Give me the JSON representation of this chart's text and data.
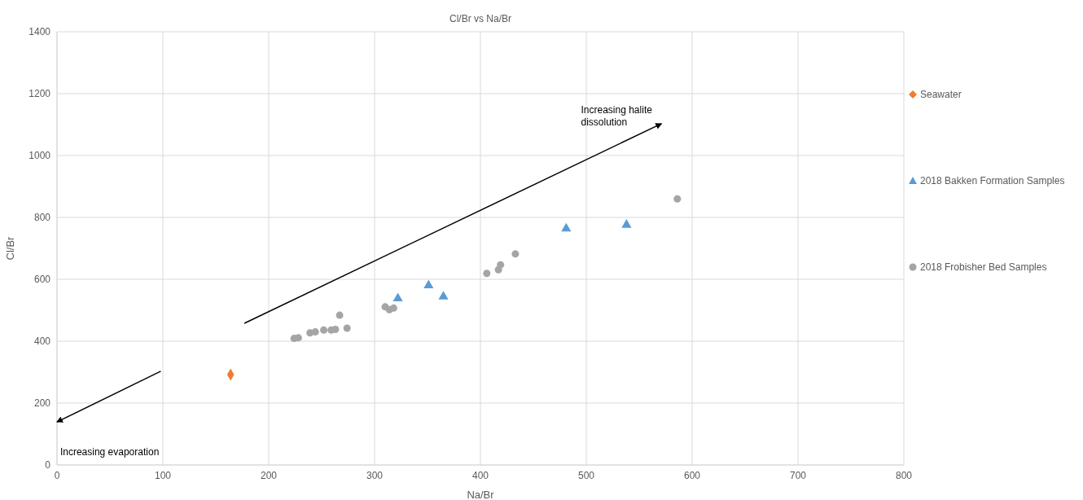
{
  "chart_data": {
    "type": "scatter",
    "title": "Cl/Br vs Na/Br",
    "xlabel": "Na/Br",
    "ylabel": "Cl/Br",
    "xlim": [
      0,
      800
    ],
    "xticks": [
      0,
      100,
      200,
      300,
      400,
      500,
      600,
      700,
      800
    ],
    "ylim": [
      0,
      1400
    ],
    "yticks": [
      0,
      200,
      400,
      600,
      800,
      1000,
      1200,
      1400
    ],
    "grid": true,
    "legend": "right",
    "annotations": [
      "Increasing halite dissolution",
      "Increasing evaporation"
    ],
    "series": [
      {
        "name": "Seawater",
        "color": "#ed7d31",
        "marker": "diamond",
        "x": [
          164
        ],
        "values": [
          292
        ]
      },
      {
        "name": "2018 Bakken Formation Samples",
        "color": "#5b9bd5",
        "marker": "triangle",
        "x": [
          322,
          351,
          365,
          481,
          538
        ],
        "values": [
          538,
          580,
          544,
          764,
          776
        ]
      },
      {
        "name": "2018 Frobisher Bed Samples",
        "color": "#a5a5a5",
        "marker": "circle",
        "x": [
          224,
          228,
          239,
          244,
          252,
          259,
          263,
          267,
          274,
          310,
          314,
          318,
          406,
          417,
          419,
          433,
          586
        ],
        "values": [
          409,
          411,
          427,
          430,
          436,
          436,
          438,
          484,
          442,
          511,
          502,
          507,
          619,
          631,
          647,
          682,
          860
        ]
      }
    ]
  }
}
